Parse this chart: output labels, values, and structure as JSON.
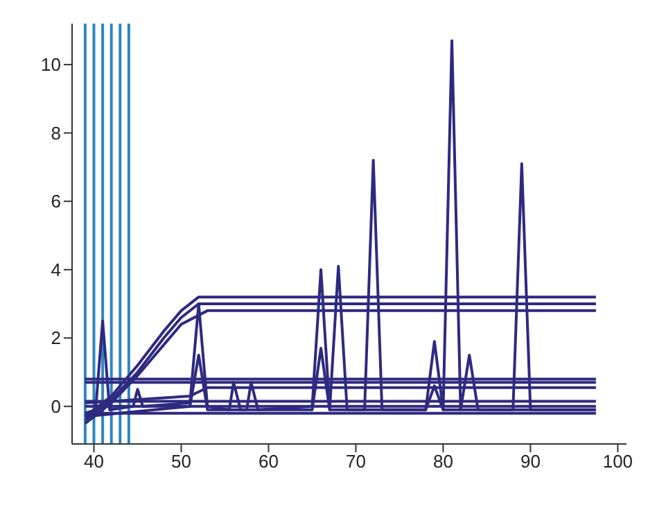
{
  "chart_data": {
    "type": "line",
    "xlim": [
      37.5,
      101
    ],
    "ylim": [
      -1.1,
      11.2
    ],
    "xticks": [
      40,
      50,
      60,
      70,
      80,
      90,
      100
    ],
    "yticks": [
      0,
      2,
      4,
      6,
      8,
      10
    ],
    "series": [
      {
        "color": "#2e2a80",
        "x": [
          39,
          40.2,
          41,
          41.8,
          44.5,
          45,
          45.6,
          51,
          52,
          53,
          55.5,
          56,
          56.8,
          57.5,
          58,
          58.8,
          65,
          66,
          67,
          68,
          69,
          71,
          72,
          73,
          78,
          79,
          80,
          81,
          82,
          83,
          84,
          88,
          89,
          90,
          97.5
        ],
        "values": [
          -0.2,
          -0.1,
          2.5,
          -0.1,
          0,
          0.5,
          0,
          0.1,
          3.0,
          0,
          -0.1,
          0.7,
          -0.1,
          -0.1,
          0.7,
          -0.1,
          0,
          4.0,
          -0.1,
          4.1,
          -0.1,
          -0.1,
          7.2,
          -0.1,
          -0.1,
          1.9,
          -0.1,
          10.7,
          -0.1,
          1.5,
          -0.1,
          -0.1,
          7.1,
          -0.1,
          -0.1
        ]
      },
      {
        "color": "#2e2a80",
        "x": [
          39,
          51,
          52,
          53,
          65,
          66,
          67,
          78,
          79,
          80,
          97.5
        ],
        "values": [
          -0.3,
          0,
          1.5,
          -0.1,
          -0.1,
          1.7,
          -0.1,
          -0.1,
          0.6,
          -0.1,
          -0.1
        ]
      },
      {
        "color": "#2e2a80",
        "x": [
          39,
          42,
          45,
          48,
          50,
          52,
          97.5
        ],
        "values": [
          -0.3,
          0.3,
          1.2,
          2.2,
          2.8,
          3.2,
          3.2
        ]
      },
      {
        "color": "#2e2a80",
        "x": [
          39,
          42,
          45,
          48,
          50,
          52,
          97.5
        ],
        "values": [
          -0.4,
          0.2,
          1.0,
          2.0,
          2.6,
          3.0,
          3.0
        ]
      },
      {
        "color": "#2e2a80",
        "x": [
          39,
          42,
          45,
          48,
          50,
          53,
          97.5
        ],
        "values": [
          -0.5,
          0.1,
          0.9,
          1.8,
          2.4,
          2.8,
          2.8
        ]
      },
      {
        "color": "#2e2a80",
        "x": [
          39,
          97.5
        ],
        "values": [
          0.8,
          0.8
        ]
      },
      {
        "color": "#2e2a80",
        "x": [
          39,
          97.5
        ],
        "values": [
          0.7,
          0.7
        ]
      },
      {
        "color": "#2e2a80",
        "x": [
          39,
          51,
          53,
          97.5
        ],
        "values": [
          0.1,
          0.3,
          0.55,
          0.55
        ]
      },
      {
        "color": "#2e2a80",
        "x": [
          39,
          97.5
        ],
        "values": [
          0.15,
          0.15
        ]
      },
      {
        "color": "#2e2a80",
        "x": [
          39,
          97.5
        ],
        "values": [
          0,
          0
        ]
      },
      {
        "color": "#2e2a80",
        "x": [
          39,
          97.5
        ],
        "values": [
          -0.2,
          -0.2
        ]
      }
    ],
    "ref_lines": [
      {
        "axis": "x",
        "value": 39,
        "color": "#2e86c1"
      },
      {
        "axis": "x",
        "value": 40,
        "color": "#2e86c1"
      },
      {
        "axis": "x",
        "value": 41,
        "color": "#2e86c1"
      },
      {
        "axis": "x",
        "value": 42,
        "color": "#2e86c1"
      },
      {
        "axis": "x",
        "value": 43,
        "color": "#2e86c1"
      },
      {
        "axis": "x",
        "value": 44,
        "color": "#2e86c1"
      }
    ]
  }
}
